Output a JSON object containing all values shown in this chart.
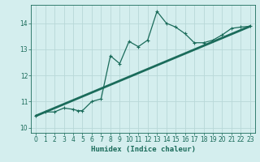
{
  "xlabel": "Humidex (Indice chaleur)",
  "bg_color": "#d4eeee",
  "grid_color": "#b8d8d8",
  "line_color": "#1a6b5a",
  "xlim": [
    -0.5,
    23.5
  ],
  "ylim": [
    9.8,
    14.7
  ],
  "yticks": [
    10,
    11,
    12,
    13,
    14
  ],
  "xticks": [
    0,
    1,
    2,
    3,
    4,
    5,
    6,
    7,
    8,
    9,
    10,
    11,
    12,
    13,
    14,
    15,
    16,
    17,
    18,
    19,
    20,
    21,
    22,
    23
  ],
  "scatter_x": [
    0,
    1,
    2,
    3,
    4,
    4.5,
    5,
    6,
    7,
    8,
    9,
    10,
    11,
    12,
    13,
    14,
    15,
    16,
    17,
    18,
    19,
    20,
    21,
    22,
    23
  ],
  "scatter_y": [
    10.45,
    10.6,
    10.6,
    10.75,
    10.7,
    10.65,
    10.65,
    11.0,
    11.1,
    12.75,
    12.45,
    13.3,
    13.1,
    13.35,
    14.45,
    14.0,
    13.85,
    13.6,
    13.25,
    13.25,
    13.35,
    13.55,
    13.8,
    13.85,
    13.88
  ],
  "line_x": [
    0,
    23
  ],
  "line_y": [
    10.45,
    13.88
  ]
}
